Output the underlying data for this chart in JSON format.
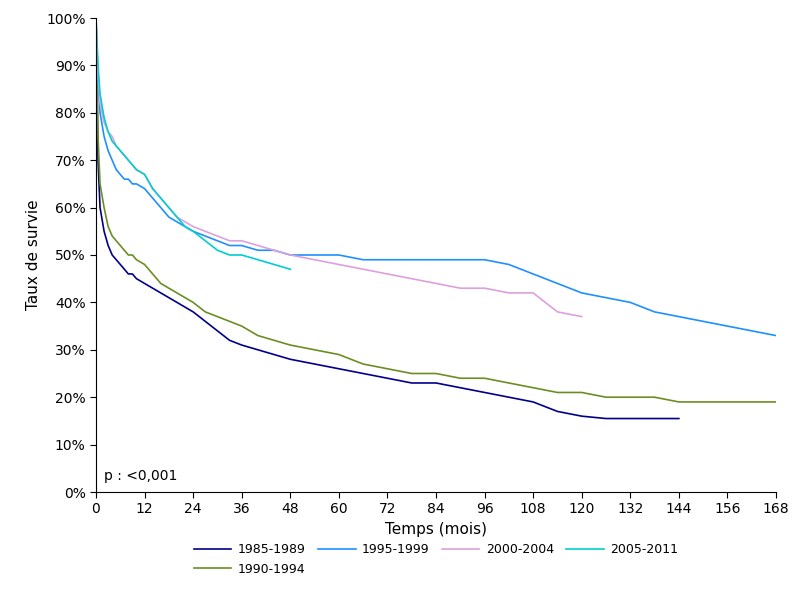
{
  "title": "",
  "xlabel": "Temps (mois)",
  "ylabel": "Taux de survie",
  "annotation": "p : <0,001",
  "xlim": [
    0,
    168
  ],
  "ylim": [
    0,
    1.0
  ],
  "xticks": [
    0,
    12,
    24,
    36,
    48,
    60,
    72,
    84,
    96,
    108,
    120,
    132,
    144,
    156,
    168
  ],
  "yticks": [
    0.0,
    0.1,
    0.2,
    0.3,
    0.4,
    0.5,
    0.6,
    0.7,
    0.8,
    0.9,
    1.0
  ],
  "series": [
    {
      "label": "1985-1989",
      "color": "#00008B",
      "x": [
        0,
        0.5,
        1,
        2,
        3,
        4,
        5,
        6,
        7,
        8,
        9,
        10,
        12,
        14,
        16,
        18,
        20,
        22,
        24,
        27,
        30,
        33,
        36,
        40,
        44,
        48,
        54,
        60,
        66,
        72,
        78,
        84,
        90,
        96,
        102,
        108,
        114,
        120,
        126,
        132,
        138,
        144
      ],
      "y": [
        1.0,
        0.7,
        0.6,
        0.55,
        0.52,
        0.5,
        0.49,
        0.48,
        0.47,
        0.46,
        0.46,
        0.45,
        0.44,
        0.43,
        0.42,
        0.41,
        0.4,
        0.39,
        0.38,
        0.36,
        0.34,
        0.32,
        0.31,
        0.3,
        0.29,
        0.28,
        0.27,
        0.26,
        0.25,
        0.24,
        0.23,
        0.23,
        0.22,
        0.21,
        0.2,
        0.19,
        0.17,
        0.16,
        0.155,
        0.155,
        0.155,
        0.155
      ]
    },
    {
      "label": "1990-1994",
      "color": "#6B8E23",
      "x": [
        0,
        0.5,
        1,
        2,
        3,
        4,
        5,
        6,
        7,
        8,
        9,
        10,
        12,
        14,
        16,
        18,
        20,
        22,
        24,
        27,
        30,
        33,
        36,
        40,
        44,
        48,
        54,
        60,
        66,
        72,
        78,
        84,
        90,
        96,
        102,
        108,
        114,
        120,
        126,
        132,
        138,
        144,
        150,
        156,
        162,
        168
      ],
      "y": [
        1.0,
        0.75,
        0.65,
        0.6,
        0.56,
        0.54,
        0.53,
        0.52,
        0.51,
        0.5,
        0.5,
        0.49,
        0.48,
        0.46,
        0.44,
        0.43,
        0.42,
        0.41,
        0.4,
        0.38,
        0.37,
        0.36,
        0.35,
        0.33,
        0.32,
        0.31,
        0.3,
        0.29,
        0.27,
        0.26,
        0.25,
        0.25,
        0.24,
        0.24,
        0.23,
        0.22,
        0.21,
        0.21,
        0.2,
        0.2,
        0.2,
        0.19,
        0.19,
        0.19,
        0.19,
        0.19
      ]
    },
    {
      "label": "1995-1999",
      "color": "#1E90FF",
      "x": [
        0,
        0.5,
        1,
        2,
        3,
        4,
        5,
        6,
        7,
        8,
        9,
        10,
        12,
        14,
        16,
        18,
        20,
        22,
        24,
        27,
        30,
        33,
        36,
        40,
        44,
        48,
        54,
        60,
        66,
        72,
        78,
        84,
        90,
        96,
        102,
        108,
        114,
        120,
        126,
        132,
        138,
        144,
        150,
        156,
        162,
        168
      ],
      "y": [
        1.0,
        0.87,
        0.8,
        0.75,
        0.72,
        0.7,
        0.68,
        0.67,
        0.66,
        0.66,
        0.65,
        0.65,
        0.64,
        0.62,
        0.6,
        0.58,
        0.57,
        0.56,
        0.55,
        0.54,
        0.53,
        0.52,
        0.52,
        0.51,
        0.51,
        0.5,
        0.5,
        0.5,
        0.49,
        0.49,
        0.49,
        0.49,
        0.49,
        0.49,
        0.48,
        0.46,
        0.44,
        0.42,
        0.41,
        0.4,
        0.38,
        0.37,
        0.36,
        0.35,
        0.34,
        0.33
      ]
    },
    {
      "label": "2000-2004",
      "color": "#DDA0DD",
      "x": [
        0,
        0.5,
        1,
        2,
        3,
        4,
        5,
        6,
        7,
        8,
        9,
        10,
        12,
        14,
        16,
        18,
        20,
        22,
        24,
        27,
        30,
        33,
        36,
        40,
        44,
        48,
        54,
        60,
        66,
        72,
        78,
        84,
        90,
        96,
        102,
        108,
        114,
        120
      ],
      "y": [
        1.0,
        0.88,
        0.82,
        0.78,
        0.76,
        0.75,
        0.73,
        0.72,
        0.71,
        0.7,
        0.69,
        0.68,
        0.67,
        0.64,
        0.62,
        0.6,
        0.58,
        0.57,
        0.56,
        0.55,
        0.54,
        0.53,
        0.53,
        0.52,
        0.51,
        0.5,
        0.49,
        0.48,
        0.47,
        0.46,
        0.45,
        0.44,
        0.43,
        0.43,
        0.42,
        0.42,
        0.38,
        0.37
      ]
    },
    {
      "label": "2005-2011",
      "color": "#00CED1",
      "x": [
        0,
        0.5,
        1,
        2,
        3,
        4,
        5,
        6,
        7,
        8,
        9,
        10,
        12,
        14,
        16,
        18,
        20,
        22,
        24,
        27,
        30,
        33,
        36,
        40,
        44,
        48
      ],
      "y": [
        1.0,
        0.9,
        0.84,
        0.79,
        0.76,
        0.74,
        0.73,
        0.72,
        0.71,
        0.7,
        0.69,
        0.68,
        0.67,
        0.64,
        0.62,
        0.6,
        0.58,
        0.56,
        0.55,
        0.53,
        0.51,
        0.5,
        0.5,
        0.49,
        0.48,
        0.47
      ]
    }
  ]
}
